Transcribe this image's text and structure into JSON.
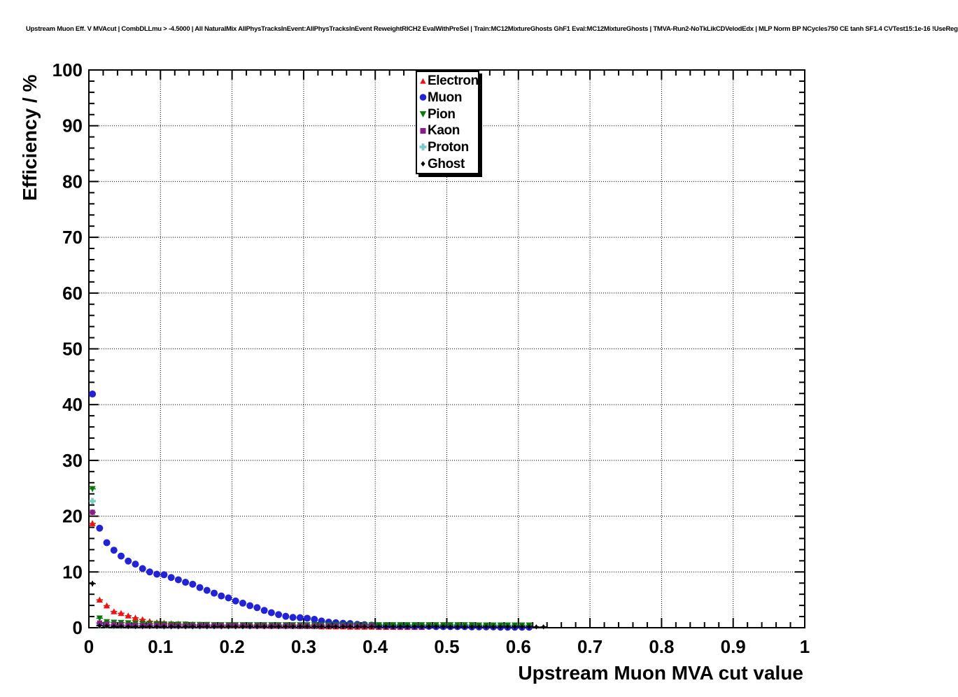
{
  "page": {
    "header_title": "Upstream Muon Eff. V MVAcut | CombDLLmu > -4.5000 | All NaturalMix AllPhysTracksInEvent:AllPhysTracksInEvent ReweightRICH2 EvalWithPreSel | Train:MC12MixtureGhosts GhF1 Eval:MC12MixtureGhosts | TMVA-Run2-NoTkLikCDVelodEdx | MLP Norm BP NCycles750 CE tanh SF1.4 CVTest15:1e-16 !UseReg"
  },
  "chart_data": {
    "type": "scatter",
    "title": "Upstream Muon Eff. V MVAcut | CombDLLmu > -4.5000 | All NaturalMix AllPhysTracksInEvent:AllPhysTracksInEvent ReweightRICH2 EvalWithPreSel | Train:MC12MixtureGhosts GhF1 Eval:MC12MixtureGhosts | TMVA-Run2-NoTkLikCDVelodEdx | MLP Norm BP NCycles750 CE tanh SF1.4 CVTest15:1e-16 !UseReg",
    "xlabel": "Upstream Muon MVA cut value",
    "ylabel": "Efficiency / %",
    "xlim": [
      0,
      1
    ],
    "ylim": [
      0,
      100
    ],
    "grid": "dotted-on-major",
    "legend_position": "top-center",
    "x_ticks": {
      "major_step": 0.1,
      "minor_step": 0.02,
      "labels": [
        "0",
        "0.1",
        "0.2",
        "0.3",
        "0.4",
        "0.5",
        "0.6",
        "0.7",
        "0.8",
        "0.9",
        "1"
      ]
    },
    "y_ticks": {
      "major_step": 10,
      "minor_step": 2,
      "labels": [
        "0",
        "10",
        "20",
        "30",
        "40",
        "50",
        "60",
        "70",
        "80",
        "90",
        "100"
      ]
    },
    "bin_start": 0.005,
    "bin_width": 0.01,
    "series": [
      {
        "name": "Electron",
        "marker": "triangle-up",
        "color": "#ee1111",
        "values": [
          18.7,
          5.0,
          3.95,
          2.9,
          2.6,
          2.15,
          1.78,
          1.48,
          1.15,
          0.95,
          0.85,
          0.75,
          0.7,
          0.65,
          0.6,
          0.55,
          0.5,
          0.5,
          0.45,
          0.45,
          0.4,
          0.4,
          0.35,
          0.35,
          0.35,
          0.3,
          0.3,
          0.3,
          0.3,
          0.25,
          0.25,
          0.25,
          0.2,
          0.2,
          0.2,
          0.2,
          0.15,
          0.15,
          0.15,
          0.15,
          0.1,
          0.1,
          0.1,
          0.1,
          0.1,
          0.1,
          0.1
        ]
      },
      {
        "name": "Muon",
        "marker": "circle",
        "color": "#2222d6",
        "values": [
          41.9,
          17.85,
          15.25,
          13.9,
          12.85,
          11.95,
          11.4,
          10.6,
          10.0,
          9.6,
          9.5,
          9.0,
          8.6,
          8.15,
          7.8,
          7.2,
          6.7,
          6.2,
          5.7,
          5.35,
          4.8,
          4.4,
          3.95,
          3.6,
          3.1,
          2.7,
          2.35,
          2.05,
          1.85,
          1.8,
          1.7,
          1.5,
          1.2,
          1.0,
          0.9,
          0.8,
          0.75,
          0.6,
          0.55,
          0.45,
          0.35,
          0.35,
          0.3,
          0.3,
          0.3,
          0.25,
          0.25,
          0.25,
          0.2,
          0.2,
          0.2,
          0.2,
          0.2,
          0.15,
          0.15,
          0.15,
          0.15,
          0.1,
          0.1,
          0.1,
          0.1,
          0.1
        ]
      },
      {
        "name": "Pion",
        "marker": "triangle-down",
        "color": "#087808",
        "values": [
          24.9,
          1.7,
          1.05,
          0.95,
          0.9,
          0.85,
          0.8,
          0.75,
          0.7,
          0.7,
          0.65,
          0.6,
          0.6,
          0.6,
          0.55,
          0.55,
          0.55,
          0.5,
          0.5,
          0.5,
          0.5,
          0.5,
          0.5,
          0.5,
          0.5,
          0.5,
          0.5,
          0.5,
          0.5,
          0.5,
          0.5,
          0.5,
          0.5,
          0.5,
          0.5,
          0.5,
          0.5,
          0.5,
          0.5,
          0.5,
          0.5,
          0.5,
          0.5,
          0.5,
          0.5,
          0.5,
          0.5,
          0.5,
          0.5,
          0.5,
          0.5,
          0.5,
          0.5,
          0.5,
          0.45,
          0.45,
          0.45,
          0.45,
          0.45,
          0.45,
          0.45,
          0.45
        ]
      },
      {
        "name": "Kaon",
        "marker": "square",
        "color": "#8b1a8b",
        "values": [
          20.7,
          0.85,
          0.6,
          0.55,
          0.5,
          0.45,
          0.45,
          0.4,
          0.4,
          0.4,
          0.4,
          0.35,
          0.35,
          0.35,
          0.35,
          0.35,
          0.35,
          0.35,
          0.35,
          0.35,
          0.35,
          0.35,
          0.3,
          0.3,
          0.3,
          0.3,
          0.3,
          0.3,
          0.3,
          0.3,
          0.3,
          0.3,
          0.3,
          0.3,
          0.3,
          0.3,
          0.3,
          0.3,
          0.3,
          0.3
        ]
      },
      {
        "name": "Proton",
        "marker": "cross",
        "color": "#77cbcb",
        "values": [
          22.7,
          0.5,
          0.45,
          0.4,
          0.4,
          0.4,
          0.35,
          0.35,
          0.35,
          0.35,
          0.3,
          0.3,
          0.3,
          0.3,
          0.3,
          0.3,
          0.3,
          0.3,
          0.3,
          0.3,
          0.3,
          0.3,
          0.3,
          0.3,
          0.3,
          0.3,
          0.3,
          0.3,
          0.3,
          0.3,
          0.3,
          0.3
        ]
      },
      {
        "name": "Ghost",
        "marker": "diamond",
        "color": "#000000",
        "values": [
          7.9,
          0.35,
          0.3,
          0.25,
          0.25,
          0.2,
          0.2,
          0.2,
          0.2,
          0.2,
          0.2,
          0.2,
          0.2,
          0.2,
          0.2,
          0.2,
          0.2,
          0.2,
          0.2,
          0.2,
          0.2,
          0.2,
          0.2,
          0.2,
          0.2,
          0.2,
          0.2,
          0.2,
          0.2,
          0.2,
          0.2,
          0.2,
          0.2,
          0.2,
          0.2,
          0.2,
          0.2,
          0.2,
          0.2,
          0.2,
          0.2,
          0.2,
          0.2,
          0.2,
          0.2,
          0.2,
          0.2,
          0.2,
          0.2,
          0.2,
          0.15,
          0.15,
          0.15,
          0.15,
          0.15,
          0.15,
          0.15,
          0.15,
          0.15,
          0.15,
          0.15,
          0.15,
          0.15,
          0.15
        ]
      }
    ]
  }
}
